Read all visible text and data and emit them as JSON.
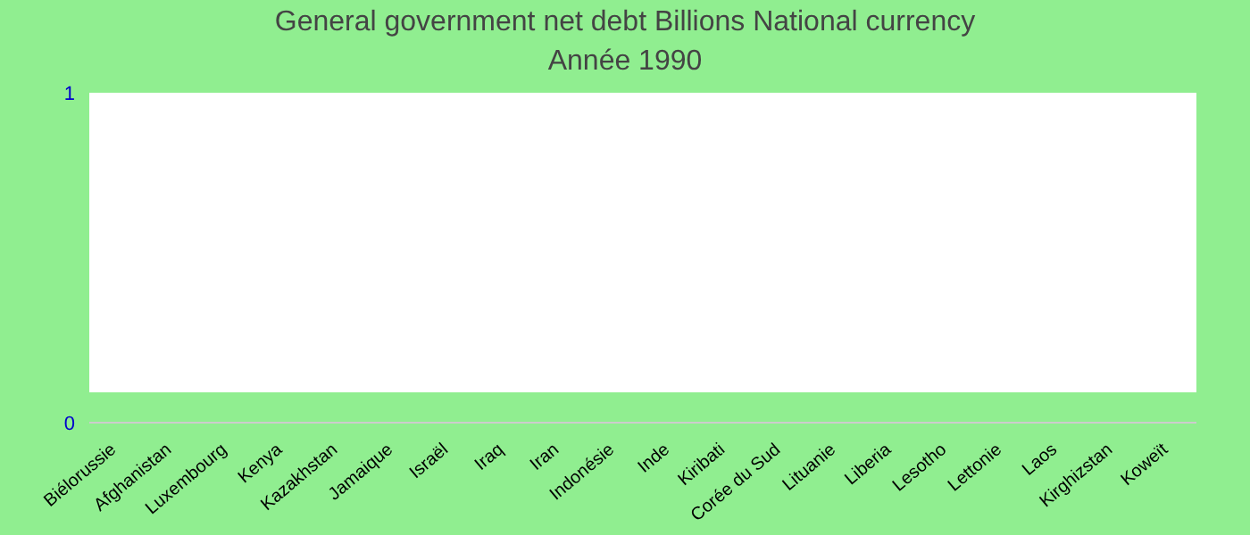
{
  "chart_data": {
    "type": "bar",
    "title": "General government net debt Billions National currency",
    "subtitle": "Année 1990",
    "categories": [
      "Biélorussie",
      "Afghanistan",
      "Luxembourg",
      "Kenya",
      "Kazakhstan",
      "Jamaique",
      "Israël",
      "Iraq",
      "Iran",
      "Indonésie",
      "Inde",
      "Kiribati",
      "Corée du Sud",
      "Lituanie",
      "Liberia",
      "Lesotho",
      "Lettonie",
      "Laos",
      "Kirghizstan",
      "Koweït"
    ],
    "values": [
      null,
      null,
      null,
      null,
      null,
      null,
      null,
      null,
      null,
      null,
      null,
      null,
      null,
      null,
      null,
      null,
      null,
      null,
      null,
      null
    ],
    "ylim": [
      0,
      1
    ],
    "yticks": [
      0,
      1
    ],
    "grid": false,
    "legend": false
  }
}
